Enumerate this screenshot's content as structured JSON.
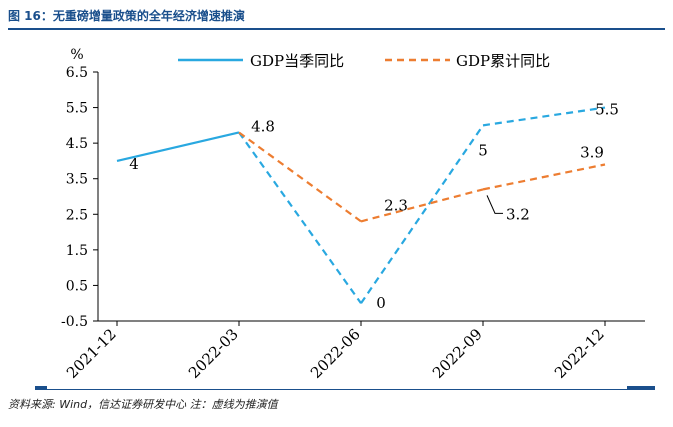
{
  "figure": {
    "title": "图 16：无重磅增量政策的全年经济增速推演",
    "source": "资料来源: Wind，信达证券研发中心   注：虚线为推演值"
  },
  "colors": {
    "quarterly": "#29a8e0",
    "cumulative": "#ed7d31",
    "rule": "#1a4f8c"
  },
  "chart_data": {
    "type": "line",
    "title": "图 16：无重磅增量政策的全年经济增速推演",
    "xlabel": "",
    "ylabel": "%",
    "ylim": [
      -0.5,
      6.5
    ],
    "yticks": [
      -0.5,
      0.5,
      1.5,
      2.5,
      3.5,
      4.5,
      5.5,
      6.5
    ],
    "ytick_labels": [
      "-0.5",
      "0.5",
      "1.5",
      "2.5",
      "3.5",
      "4.5",
      "5.5",
      "6.5"
    ],
    "categories": [
      "2021-12",
      "2022-03",
      "2022-06",
      "2022-09",
      "2022-12"
    ],
    "legend_position": "top",
    "series": [
      {
        "name": "GDP当季同比",
        "color": "#29a8e0",
        "values": [
          4,
          4.8,
          0,
          5,
          5.5
        ],
        "labels": [
          "4",
          "4.8",
          "0",
          "5",
          "5.5"
        ],
        "dashed_from_index": 1
      },
      {
        "name": "GDP累计同比",
        "color": "#ed7d31",
        "values": [
          null,
          4.8,
          2.3,
          3.2,
          3.9
        ],
        "labels": [
          "",
          "",
          "2.3",
          "3.2",
          "3.9"
        ],
        "dashed_from_index": 1
      }
    ]
  }
}
